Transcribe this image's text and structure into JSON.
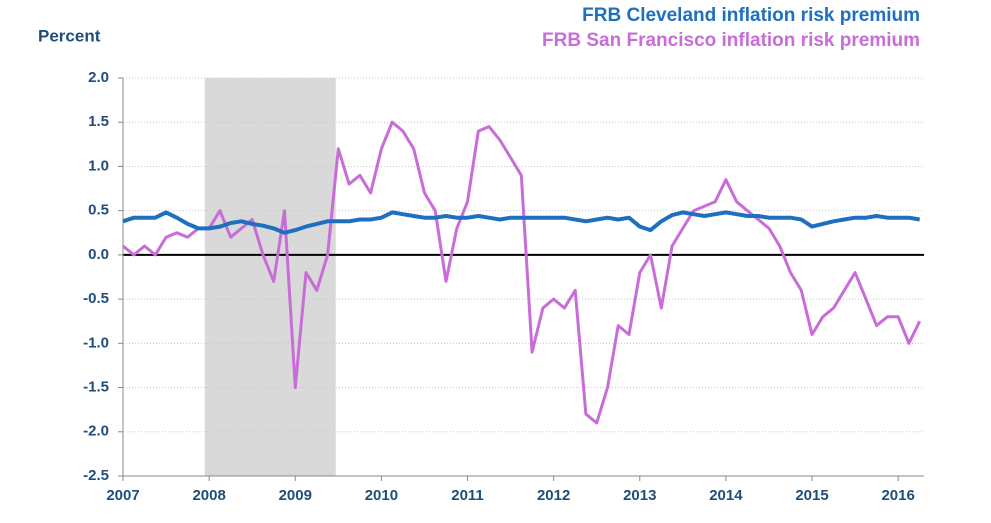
{
  "chart_data": {
    "type": "line",
    "y_label": "Percent",
    "x": [
      2007,
      2007.125,
      2007.25,
      2007.375,
      2007.5,
      2007.625,
      2007.75,
      2007.875,
      2008,
      2008.125,
      2008.25,
      2008.375,
      2008.5,
      2008.625,
      2008.75,
      2008.875,
      2009,
      2009.125,
      2009.25,
      2009.375,
      2009.5,
      2009.625,
      2009.75,
      2009.875,
      2010,
      2010.125,
      2010.25,
      2010.375,
      2010.5,
      2010.625,
      2010.75,
      2010.875,
      2011,
      2011.125,
      2011.25,
      2011.375,
      2011.5,
      2011.625,
      2011.75,
      2011.875,
      2012,
      2012.125,
      2012.25,
      2012.375,
      2012.5,
      2012.625,
      2012.75,
      2012.875,
      2013,
      2013.125,
      2013.25,
      2013.375,
      2013.5,
      2013.625,
      2013.75,
      2013.875,
      2014,
      2014.125,
      2014.25,
      2014.375,
      2014.5,
      2014.625,
      2014.75,
      2014.875,
      2015,
      2015.125,
      2015.25,
      2015.375,
      2015.5,
      2015.625,
      2015.75,
      2015.875,
      2016,
      2016.125,
      2016.25
    ],
    "series": [
      {
        "name": "FRB Cleveland inflation risk premium",
        "color": "#1f6fc0",
        "values": [
          0.38,
          0.42,
          0.42,
          0.42,
          0.48,
          0.42,
          0.35,
          0.3,
          0.3,
          0.32,
          0.36,
          0.38,
          0.35,
          0.33,
          0.3,
          0.25,
          0.28,
          0.32,
          0.35,
          0.38,
          0.38,
          0.38,
          0.4,
          0.4,
          0.42,
          0.48,
          0.46,
          0.44,
          0.42,
          0.42,
          0.44,
          0.42,
          0.42,
          0.44,
          0.42,
          0.4,
          0.42,
          0.42,
          0.42,
          0.42,
          0.42,
          0.42,
          0.4,
          0.38,
          0.4,
          0.42,
          0.4,
          0.42,
          0.32,
          0.28,
          0.38,
          0.45,
          0.48,
          0.46,
          0.44,
          0.46,
          0.48,
          0.46,
          0.44,
          0.44,
          0.42,
          0.42,
          0.42,
          0.4,
          0.32,
          0.35,
          0.38,
          0.4,
          0.42,
          0.42,
          0.44,
          0.42,
          0.42,
          0.42,
          0.4
        ]
      },
      {
        "name": "FRB San Francisco inflation risk premium",
        "color": "#c86dd7",
        "values": [
          0.1,
          0.0,
          0.1,
          0.0,
          0.2,
          0.25,
          0.2,
          0.3,
          0.3,
          0.5,
          0.2,
          0.3,
          0.4,
          0.0,
          -0.3,
          0.5,
          -1.5,
          -0.2,
          -0.4,
          0.0,
          1.2,
          0.8,
          0.9,
          0.7,
          1.2,
          1.5,
          1.4,
          1.2,
          0.7,
          0.5,
          -0.3,
          0.3,
          0.6,
          1.4,
          1.45,
          1.3,
          1.1,
          0.9,
          -1.1,
          -0.6,
          -0.5,
          -0.6,
          -0.4,
          -1.8,
          -1.9,
          -1.5,
          -0.8,
          -0.9,
          -0.2,
          0.0,
          -0.6,
          0.1,
          0.3,
          0.5,
          0.55,
          0.6,
          0.85,
          0.6,
          0.5,
          0.4,
          0.3,
          0.1,
          -0.2,
          -0.4,
          -0.9,
          -0.7,
          -0.6,
          -0.4,
          -0.2,
          -0.5,
          -0.8,
          -0.7,
          -0.7,
          -1.0,
          -0.75
        ]
      }
    ],
    "shaded_ranges": [
      [
        2007.95,
        2009.47
      ]
    ],
    "xlim": [
      2007,
      2016.3
    ],
    "xticks": [
      2007,
      2008,
      2009,
      2010,
      2011,
      2012,
      2013,
      2014,
      2015,
      2016
    ],
    "ylim": [
      -2.5,
      2.0
    ],
    "yticks": [
      {
        "value": -2.5,
        "label": "-2.5"
      },
      {
        "value": -2,
        "label": "-2.0"
      },
      {
        "value": -1.5,
        "label": "-1.5"
      },
      {
        "value": -1,
        "label": "-1.0"
      },
      {
        "value": -0.5,
        "label": "-0.5"
      },
      {
        "value": 0,
        "label": "0.0"
      },
      {
        "value": 0.5,
        "label": "0.5"
      },
      {
        "value": 1,
        "label": "1.0"
      },
      {
        "value": 1.5,
        "label": "1.5"
      },
      {
        "value": 2,
        "label": "2.0"
      }
    ],
    "grid": true
  }
}
